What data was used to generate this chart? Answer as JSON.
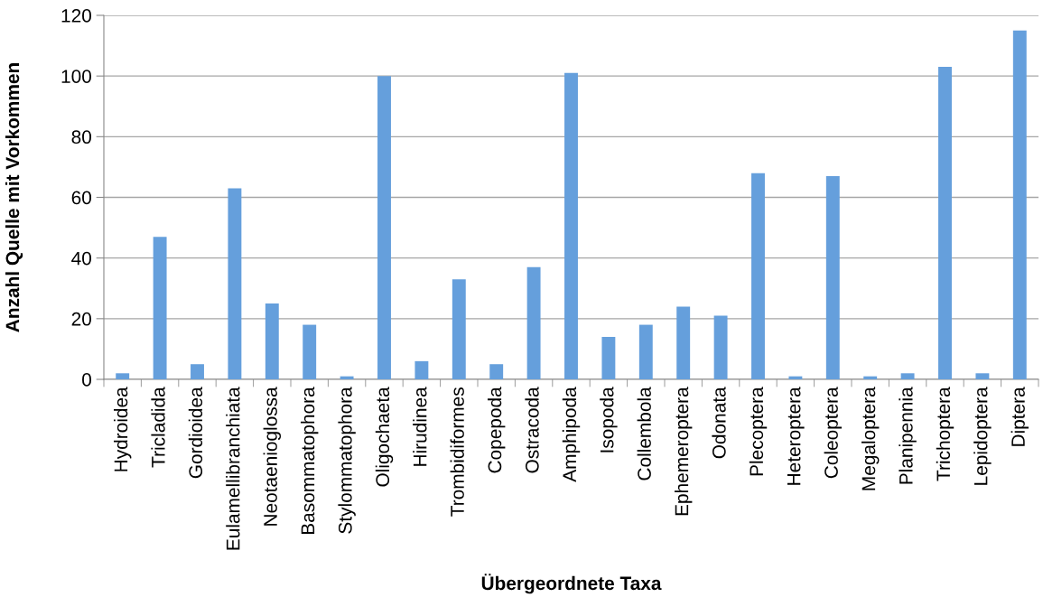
{
  "chart_data": {
    "type": "bar",
    "xlabel": "Übergeordnete Taxa",
    "ylabel": "Anzahl Quelle mit Vorkommen",
    "categories": [
      "Hydroidea",
      "Tricladida",
      "Gordioidea",
      "Eulamellibranchiata",
      "Neotaenioglossa",
      "Basommatophora",
      "Stylommatophora",
      "Oligochaeta",
      "Hirudinea",
      "Trombidiformes",
      "Copepoda",
      "Ostracoda",
      "Amphipoda",
      "Isopoda",
      "Collembola",
      "Ephemeroptera",
      "Odonata",
      "Plecoptera",
      "Heteroptera",
      "Coleoptera",
      "Megaloptera",
      "Planipennia",
      "Trichoptera",
      "Lepidoptera",
      "Diptera"
    ],
    "values": [
      2,
      47,
      5,
      63,
      25,
      18,
      1,
      100,
      6,
      33,
      5,
      37,
      101,
      14,
      18,
      24,
      21,
      68,
      1,
      67,
      1,
      2,
      103,
      2,
      115
    ],
    "color": "#659fdc",
    "ylim": [
      0,
      120
    ],
    "yticks": [
      0,
      20,
      40,
      60,
      80,
      100,
      120
    ],
    "grid": "y"
  }
}
